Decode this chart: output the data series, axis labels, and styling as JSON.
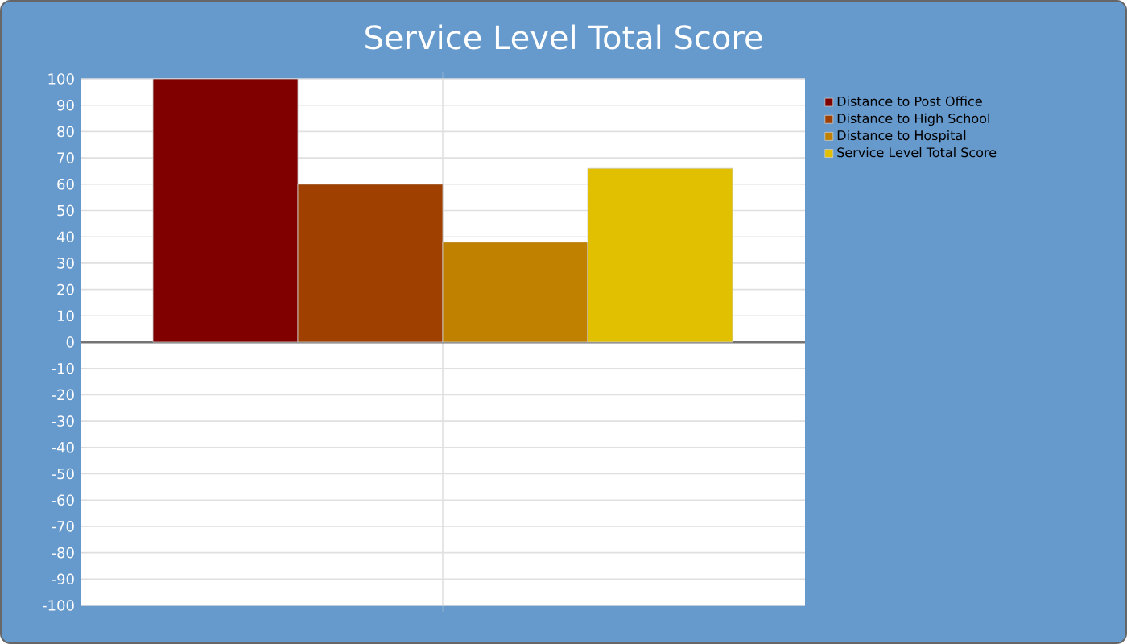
{
  "chart_data": {
    "type": "bar",
    "title": "Service Level Total Score",
    "categories": [
      null
    ],
    "series": [
      {
        "name": "Distance to Post Office",
        "color": "#800000",
        "values": [
          100
        ]
      },
      {
        "name": "Distance to High School",
        "color": "#a04000",
        "values": [
          60
        ]
      },
      {
        "name": "Distance to Hospital",
        "color": "#c08000",
        "values": [
          38
        ]
      },
      {
        "name": "Service Level Total Score",
        "color": "#e0c000",
        "values": [
          66
        ]
      }
    ],
    "ylim": [
      -100,
      100
    ],
    "yticks": [
      -100,
      -90,
      -80,
      -70,
      -60,
      -50,
      -40,
      -30,
      -20,
      -10,
      0,
      10,
      20,
      30,
      40,
      50,
      60,
      70,
      80,
      90,
      100
    ],
    "grid": true,
    "legend": "right"
  }
}
